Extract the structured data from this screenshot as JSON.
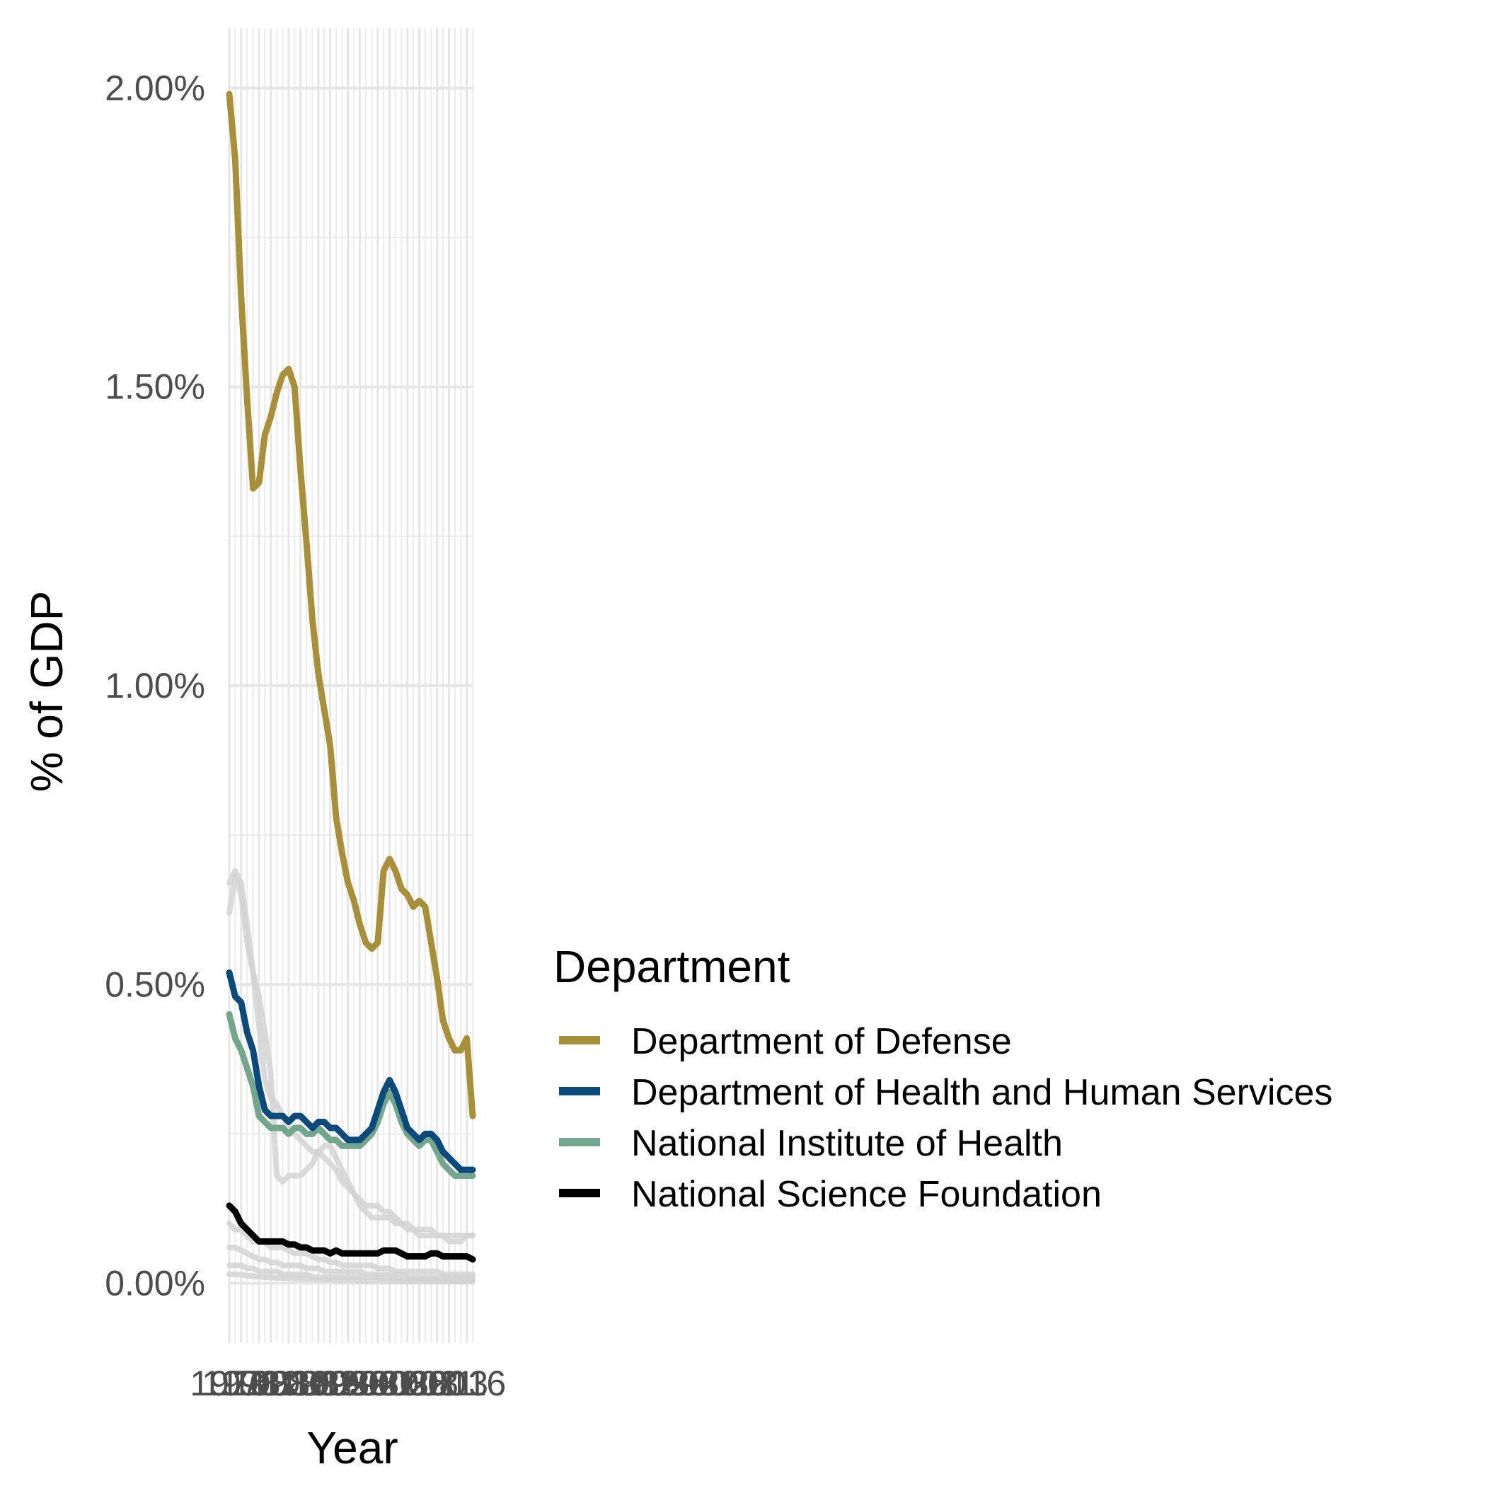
{
  "chart_data": {
    "type": "line",
    "xlabel": "Year",
    "ylabel": "% of GDP",
    "xlim": [
      1976,
      2017
    ],
    "ylim": [
      -0.1,
      2.1
    ],
    "grid": true,
    "x_ticks": [
      1976,
      1978,
      1981,
      1983,
      1986,
      1988,
      1991,
      1993,
      1996,
      1998,
      2001,
      2003,
      2006,
      2008,
      2011,
      2013,
      2016
    ],
    "x_tick_labels": [
      "1976",
      "1978",
      "1981",
      "1983",
      "1986",
      "1988",
      "1991",
      "1993",
      "1996",
      "1998",
      "2001",
      "2003",
      "2006",
      "2008",
      "2011",
      "2013",
      "2016"
    ],
    "y_ticks": [
      0,
      0.5,
      1.0,
      1.5,
      2.0
    ],
    "y_tick_labels": [
      "0.00%",
      "0.50%",
      "1.00%",
      "1.50%",
      "2.00%"
    ],
    "legend": {
      "title": "Department",
      "position": "right"
    },
    "x": [
      1976,
      1977,
      1978,
      1979,
      1980,
      1981,
      1982,
      1983,
      1984,
      1985,
      1986,
      1987,
      1988,
      1989,
      1990,
      1991,
      1992,
      1993,
      1994,
      1995,
      1996,
      1997,
      1998,
      1999,
      2000,
      2001,
      2002,
      2003,
      2004,
      2005,
      2006,
      2007,
      2008,
      2009,
      2010,
      2011,
      2012,
      2013,
      2014,
      2015,
      2016,
      2017
    ],
    "series": [
      {
        "name": "Department of Defense",
        "color": "#a8903a",
        "highlighted": true,
        "values": [
          1.99,
          1.88,
          1.65,
          1.48,
          1.33,
          1.34,
          1.42,
          1.45,
          1.49,
          1.52,
          1.53,
          1.5,
          1.36,
          1.24,
          1.11,
          1.02,
          0.96,
          0.9,
          0.78,
          0.72,
          0.67,
          0.64,
          0.6,
          0.57,
          0.56,
          0.57,
          0.69,
          0.71,
          0.69,
          0.66,
          0.65,
          0.63,
          0.64,
          0.63,
          0.57,
          0.51,
          0.44,
          0.41,
          0.39,
          0.39,
          0.41,
          0.28
        ]
      },
      {
        "name": "Department of Health and Human Services",
        "color": "#0b4a7a",
        "highlighted": true,
        "values": [
          0.52,
          0.48,
          0.47,
          0.42,
          0.39,
          0.33,
          0.29,
          0.28,
          0.28,
          0.28,
          0.27,
          0.28,
          0.28,
          0.27,
          0.26,
          0.27,
          0.27,
          0.26,
          0.26,
          0.25,
          0.24,
          0.24,
          0.24,
          0.25,
          0.26,
          0.29,
          0.32,
          0.34,
          0.32,
          0.29,
          0.26,
          0.25,
          0.24,
          0.25,
          0.25,
          0.24,
          0.22,
          0.21,
          0.2,
          0.19,
          0.19,
          0.19
        ]
      },
      {
        "name": "National Institute of Health",
        "color": "#74a68e",
        "highlighted": true,
        "values": [
          0.45,
          0.41,
          0.39,
          0.36,
          0.33,
          0.28,
          0.27,
          0.26,
          0.26,
          0.26,
          0.25,
          0.26,
          0.26,
          0.25,
          0.25,
          0.26,
          0.25,
          0.24,
          0.24,
          0.23,
          0.23,
          0.23,
          0.23,
          0.24,
          0.25,
          0.27,
          0.3,
          0.32,
          0.3,
          0.27,
          0.25,
          0.24,
          0.23,
          0.24,
          0.24,
          0.22,
          0.2,
          0.19,
          0.18,
          0.18,
          0.18,
          0.18
        ]
      },
      {
        "name": "National Science Foundation",
        "color": "#000000",
        "highlighted": true,
        "values": [
          0.13,
          0.12,
          0.1,
          0.09,
          0.08,
          0.07,
          0.07,
          0.07,
          0.07,
          0.07,
          0.065,
          0.065,
          0.06,
          0.06,
          0.055,
          0.055,
          0.055,
          0.05,
          0.055,
          0.05,
          0.05,
          0.05,
          0.05,
          0.05,
          0.05,
          0.05,
          0.055,
          0.055,
          0.055,
          0.05,
          0.045,
          0.045,
          0.045,
          0.045,
          0.05,
          0.05,
          0.045,
          0.045,
          0.045,
          0.045,
          0.045,
          0.04
        ]
      },
      {
        "color": "#d3d3d3",
        "highlighted": false,
        "values": [
          0.67,
          0.69,
          0.67,
          0.6,
          0.52,
          0.43,
          0.34,
          0.31,
          0.3,
          0.28,
          0.26,
          0.25,
          0.24,
          0.23,
          0.22,
          0.22,
          0.21,
          0.2,
          0.19,
          0.17,
          0.16,
          0.15,
          0.14,
          0.13,
          0.13,
          0.13,
          0.12,
          0.12,
          0.11,
          0.1,
          0.1,
          0.09,
          0.09,
          0.09,
          0.09,
          0.08,
          0.08,
          0.08,
          0.08,
          0.08,
          0.08,
          0.08
        ]
      },
      {
        "color": "#d3d3d3",
        "highlighted": false,
        "values": [
          0.62,
          0.68,
          0.65,
          0.57,
          0.52,
          0.48,
          0.42,
          0.35,
          0.18,
          0.17,
          0.18,
          0.18,
          0.18,
          0.19,
          0.2,
          0.22,
          0.23,
          0.23,
          0.21,
          0.19,
          0.17,
          0.15,
          0.13,
          0.12,
          0.11,
          0.11,
          0.11,
          0.11,
          0.1,
          0.1,
          0.09,
          0.09,
          0.08,
          0.08,
          0.08,
          0.08,
          0.08,
          0.07,
          0.07,
          0.07,
          0.08,
          0.08
        ]
      },
      {
        "color": "#d3d3d3",
        "highlighted": false,
        "values": [
          0.1,
          0.09,
          0.09,
          0.08,
          0.07,
          0.07,
          0.07,
          0.06,
          0.06,
          0.06,
          0.055,
          0.05,
          0.05,
          0.05,
          0.045,
          0.04,
          0.04,
          0.035,
          0.035,
          0.03,
          0.03,
          0.03,
          0.03,
          0.03,
          0.03,
          0.025,
          0.025,
          0.025,
          0.02,
          0.02,
          0.02,
          0.02,
          0.02,
          0.02,
          0.02,
          0.02,
          0.015,
          0.015,
          0.015,
          0.015,
          0.015,
          0.015
        ]
      },
      {
        "color": "#d3d3d3",
        "highlighted": false,
        "values": [
          0.06,
          0.06,
          0.055,
          0.05,
          0.045,
          0.04,
          0.04,
          0.035,
          0.035,
          0.03,
          0.03,
          0.03,
          0.03,
          0.025,
          0.025,
          0.025,
          0.02,
          0.02,
          0.02,
          0.02,
          0.02,
          0.02,
          0.02,
          0.015,
          0.015,
          0.015,
          0.015,
          0.015,
          0.015,
          0.015,
          0.01,
          0.01,
          0.01,
          0.01,
          0.01,
          0.01,
          0.01,
          0.01,
          0.01,
          0.01,
          0.01,
          0.01
        ]
      },
      {
        "color": "#d3d3d3",
        "highlighted": false,
        "values": [
          0.03,
          0.03,
          0.03,
          0.025,
          0.025,
          0.02,
          0.02,
          0.02,
          0.02,
          0.015,
          0.015,
          0.015,
          0.015,
          0.015,
          0.01,
          0.01,
          0.01,
          0.01,
          0.01,
          0.01,
          0.01,
          0.01,
          0.01,
          0.01,
          0.01,
          0.01,
          0.008,
          0.008,
          0.008,
          0.008,
          0.006,
          0.006,
          0.006,
          0.006,
          0.006,
          0.005,
          0.005,
          0.005,
          0.005,
          0.005,
          0.005,
          0.005
        ]
      },
      {
        "color": "#d3d3d3",
        "highlighted": false,
        "values": [
          0.015,
          0.015,
          0.014,
          0.013,
          0.012,
          0.011,
          0.01,
          0.01,
          0.009,
          0.009,
          0.008,
          0.008,
          0.007,
          0.007,
          0.007,
          0.006,
          0.006,
          0.006,
          0.005,
          0.005,
          0.005,
          0.005,
          0.004,
          0.004,
          0.004,
          0.004,
          0.004,
          0.004,
          0.004,
          0.003,
          0.003,
          0.003,
          0.003,
          0.003,
          0.003,
          0.003,
          0.003,
          0.003,
          0.003,
          0.003,
          0.003,
          0.003
        ]
      }
    ]
  }
}
